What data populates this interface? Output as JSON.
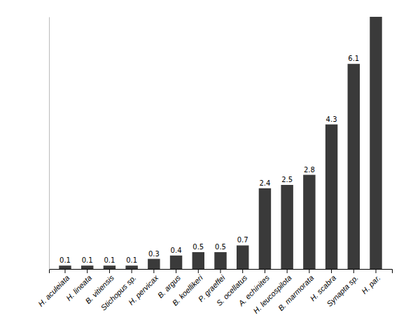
{
  "chart_data": {
    "type": "bar",
    "categories": [
      "H. aculeiata",
      "H. lineata",
      "B. vitiensis",
      "Stichopus sp.",
      "H. pervicax",
      "B. argus",
      "B. koellikeri",
      "P. graeffei",
      "S. ocellatus",
      "A. echinites",
      "H. leucospilota",
      "B. marmorata",
      "H. scabra",
      "Synapta sp.",
      "H. par."
    ],
    "values": [
      0.1,
      0.1,
      0.1,
      0.1,
      0.3,
      0.4,
      0.5,
      0.5,
      0.7,
      2.4,
      2.5,
      2.8,
      4.3,
      6.1,
      7.5
    ],
    "value_labels": [
      "0.1",
      "0.1",
      "0.1",
      "0.1",
      "0.3",
      "0.4",
      "0.5",
      "0.5",
      "0.7",
      "2.4",
      "2.5",
      "2.8",
      "4.3",
      "6.1",
      null
    ],
    "data_labels": true,
    "color": "#3a3a3a",
    "ylim": [
      0,
      7.5
    ],
    "tick_labels": "x",
    "grid": false
  }
}
